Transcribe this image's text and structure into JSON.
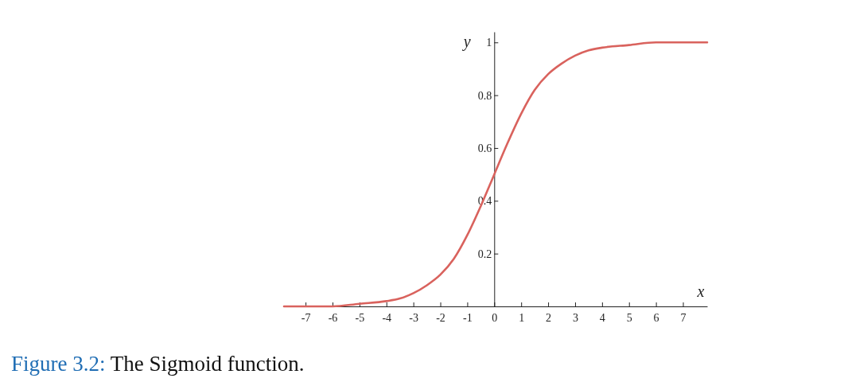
{
  "chart_data": {
    "type": "line",
    "xlabel": "x",
    "ylabel": "y",
    "x": [
      -7.8,
      -6,
      -5,
      -4,
      -3.5,
      -3,
      -2.5,
      -2,
      -1.5,
      -1,
      -0.5,
      0,
      0.5,
      1,
      1.5,
      2,
      2.5,
      3,
      3.5,
      4,
      5,
      6,
      7.9
    ],
    "series": [
      {
        "color": "#d9625d",
        "values": [
          0,
          0,
          0.01,
          0.02,
          0.03,
          0.05,
          0.08,
          0.12,
          0.18,
          0.27,
          0.38,
          0.5,
          0.62,
          0.73,
          0.82,
          0.88,
          0.92,
          0.95,
          0.97,
          0.98,
          0.99,
          1,
          1
        ]
      }
    ],
    "xlim": [
      -7.8,
      7.9
    ],
    "ylim": [
      0,
      1.04
    ],
    "xticks": [
      -7,
      -6,
      -5,
      -4,
      -3,
      -2,
      -1,
      0,
      1,
      2,
      3,
      4,
      5,
      6,
      7
    ],
    "yticks": [
      0.2,
      0.4,
      0.6,
      0.8,
      1
    ],
    "grid": false,
    "marker": "none",
    "line_style": "solid",
    "annotations": [
      "Figure 3.2: The Sigmoid function."
    ]
  }
}
